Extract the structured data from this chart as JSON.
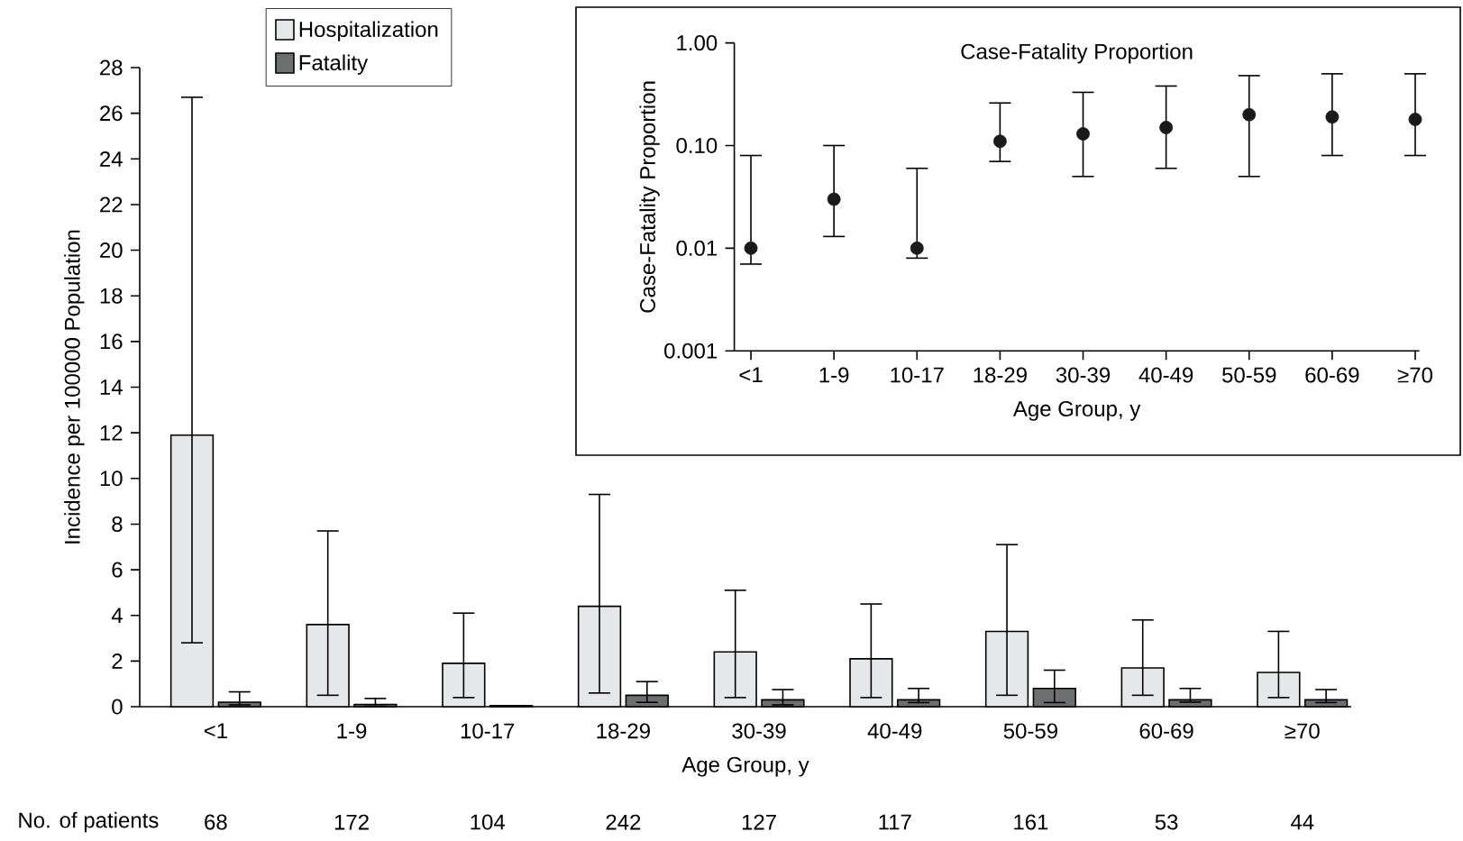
{
  "chart_data": [
    {
      "type": "bar",
      "xlabel": "Age Group, y",
      "ylabel": "Incidence per 100000 Population",
      "categories": [
        "<1",
        "1-9",
        "10-17",
        "18-29",
        "30-39",
        "40-49",
        "50-59",
        "60-69",
        "≥70"
      ],
      "series": [
        {
          "name": "Hospitalization",
          "color": "#e6e7e8",
          "values": [
            11.9,
            3.6,
            1.9,
            4.4,
            2.4,
            2.1,
            3.3,
            1.7,
            1.5
          ],
          "errors": [
            [
              2.8,
              26.7
            ],
            [
              0.5,
              7.7
            ],
            [
              0.4,
              4.1
            ],
            [
              0.6,
              9.3
            ],
            [
              0.4,
              5.1
            ],
            [
              0.4,
              4.5
            ],
            [
              0.5,
              7.1
            ],
            [
              0.5,
              3.8
            ],
            [
              0.4,
              3.3
            ]
          ]
        },
        {
          "name": "Fatality",
          "color": "#6d6e70",
          "values": [
            0.2,
            0.1,
            0.05,
            0.5,
            0.3,
            0.3,
            0.8,
            0.3,
            0.3
          ],
          "errors": [
            [
              0.08,
              0.65
            ],
            [
              0.02,
              0.36
            ],
            null,
            [
              0.19,
              1.1
            ],
            [
              0.08,
              0.75
            ],
            [
              0.18,
              0.8
            ],
            [
              0.18,
              1.6
            ],
            [
              0.2,
              0.8
            ],
            [
              0.18,
              0.75
            ]
          ]
        }
      ],
      "ylim": [
        0,
        28
      ],
      "yticks": [
        0,
        2,
        4,
        6,
        8,
        10,
        12,
        14,
        16,
        18,
        20,
        22,
        24,
        26,
        28
      ],
      "legend": "top left",
      "annotations": [
        "No. of patients",
        "68",
        "172",
        "104",
        "242",
        "127",
        "117",
        "161",
        "53",
        "44"
      ]
    },
    {
      "type": "scatter",
      "title": "Case-Fatality Proportion",
      "xlabel": "Age Group, y",
      "ylabel": "Case-Fatality Proportion",
      "categories": [
        "<1",
        "1-9",
        "10-17",
        "18-29",
        "30-39",
        "40-49",
        "50-59",
        "60-69",
        "≥70"
      ],
      "series": [
        {
          "color": "#1a1a1a",
          "values": [
            0.01,
            0.03,
            0.01,
            0.11,
            0.13,
            0.15,
            0.2,
            0.19,
            0.18
          ],
          "errors": [
            [
              0.007,
              0.08
            ],
            [
              0.013,
              0.1
            ],
            [
              0.008,
              0.06
            ],
            [
              0.07,
              0.26
            ],
            [
              0.05,
              0.33
            ],
            [
              0.06,
              0.38
            ],
            [
              0.05,
              0.48
            ],
            [
              0.08,
              0.5
            ],
            [
              0.08,
              0.5
            ]
          ]
        }
      ],
      "log": "y",
      "ylim": [
        0.001,
        1
      ],
      "yticks": [
        0.001,
        0.01,
        {
          "value": 0.1,
          "label": "0.10"
        },
        {
          "value": 1,
          "label": "1.00"
        }
      ],
      "marker": "circle"
    }
  ]
}
